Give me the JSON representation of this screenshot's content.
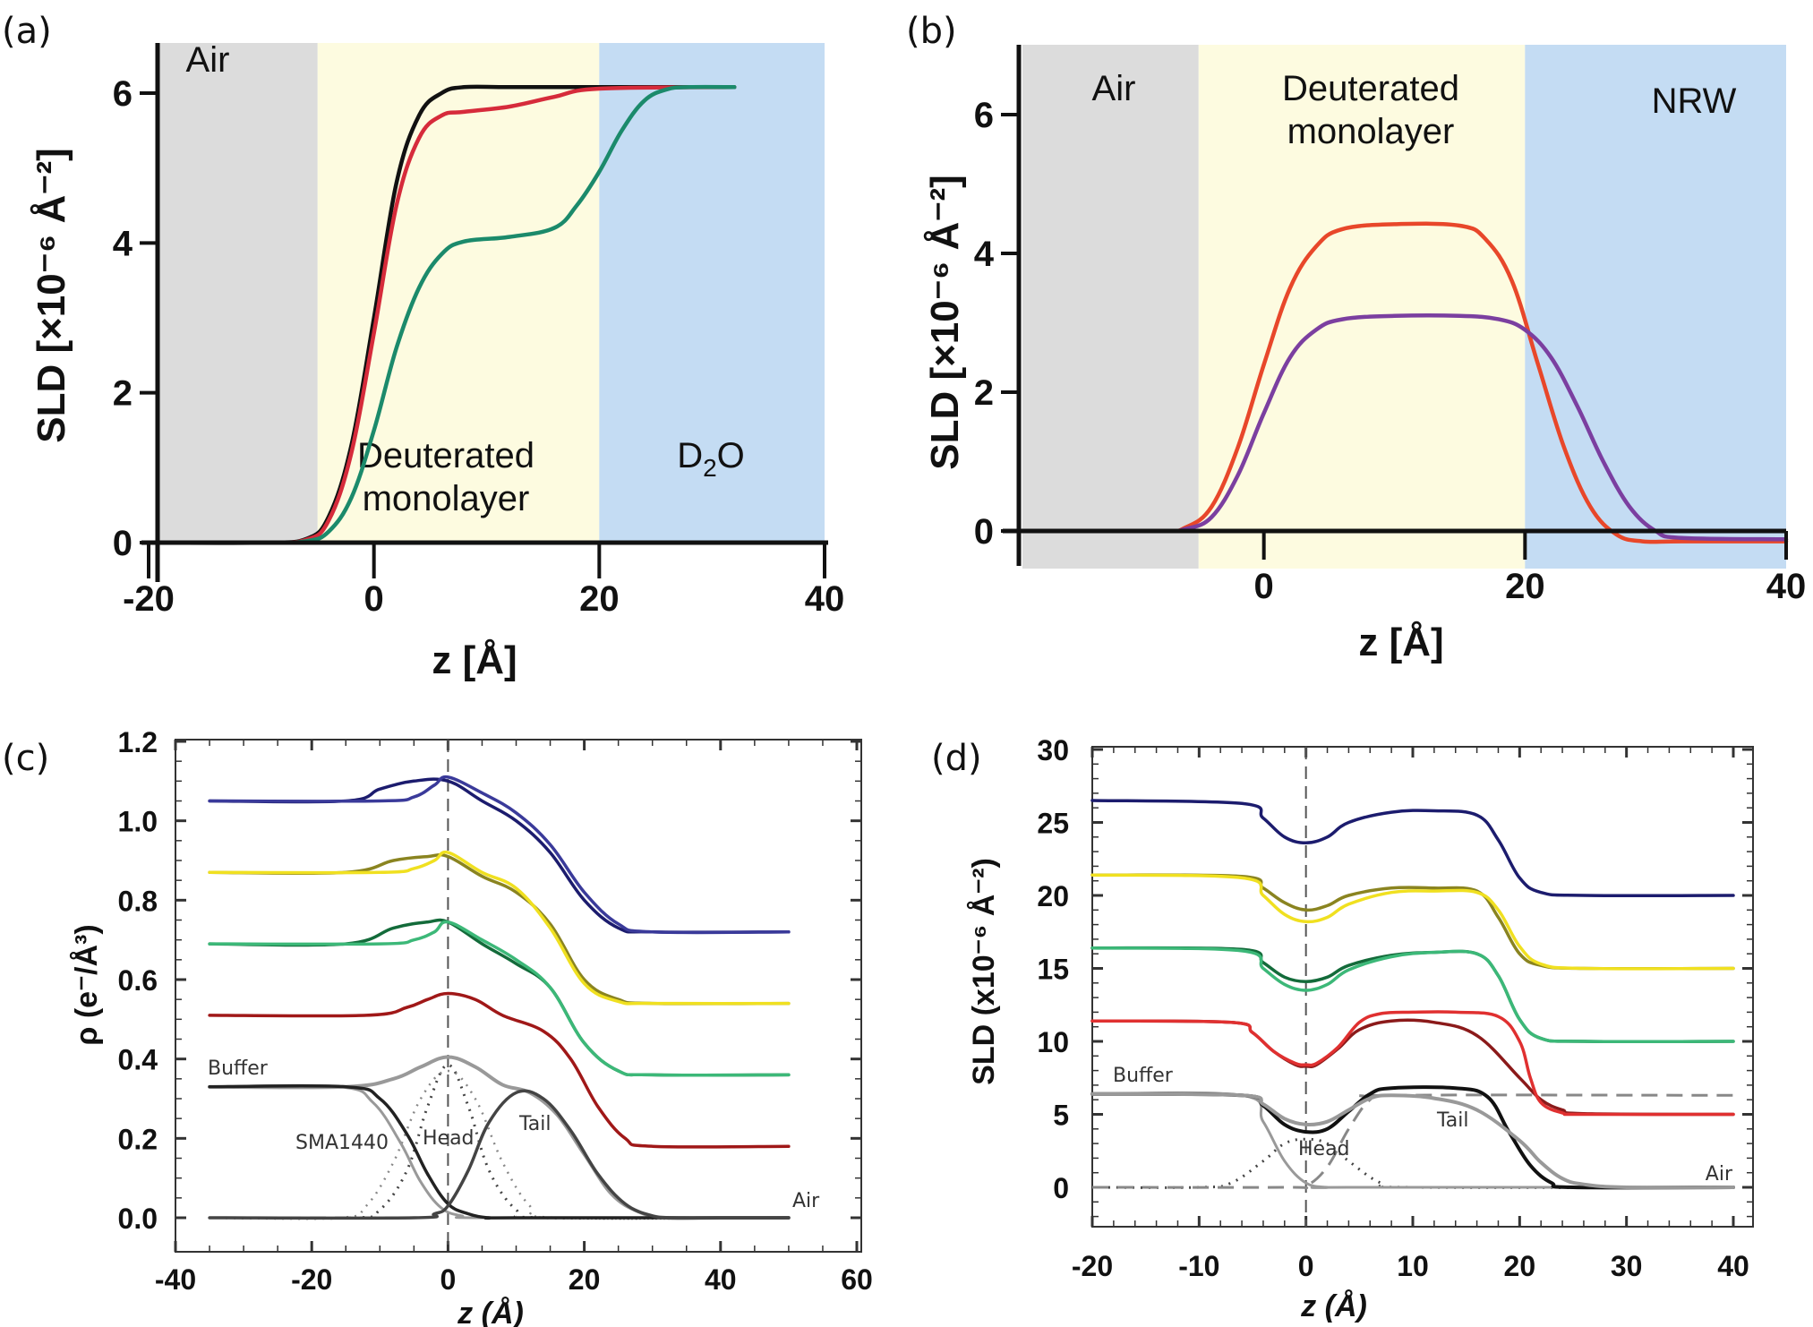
{
  "figure": {
    "panels": [
      "(a)",
      "(b)",
      "(c)",
      "(d)"
    ]
  },
  "chart_data": [
    {
      "id": "a",
      "type": "line",
      "panel_label": "(a)",
      "title": "",
      "xlabel": "z [Å]",
      "ylabel": "SLD [×10⁻⁶ Å⁻²]",
      "xlim": [
        -20,
        40
      ],
      "ylim": [
        0,
        6.6
      ],
      "xticks": [
        -20,
        0,
        20,
        40
      ],
      "yticks": [
        0,
        2,
        4,
        6
      ],
      "grid": false,
      "regions": [
        {
          "label": "Air",
          "x": [
            -20,
            -5
          ],
          "color": "#dcdcdc"
        },
        {
          "label": "Deuterated monolayer",
          "x": [
            -5,
            20
          ],
          "color": "#fdfbe0"
        },
        {
          "label": "D2O",
          "x": [
            20,
            40
          ],
          "color": "#c4dcf3"
        }
      ],
      "series": [
        {
          "name": "black",
          "color": "#111111",
          "x": [
            -20,
            -10,
            -6,
            -4,
            -2,
            0,
            2,
            4,
            6,
            8,
            12,
            20,
            32
          ],
          "y": [
            0,
            0,
            0.05,
            0.35,
            1.3,
            3.0,
            4.8,
            5.7,
            6.0,
            6.08,
            6.08,
            6.08,
            6.08
          ]
        },
        {
          "name": "red",
          "color": "#d62b3b",
          "x": [
            -20,
            -10,
            -6,
            -4,
            -2,
            0,
            2,
            4,
            6,
            8,
            12,
            16,
            20,
            32
          ],
          "y": [
            0,
            0,
            0.04,
            0.3,
            1.2,
            2.8,
            4.5,
            5.4,
            5.7,
            5.75,
            5.82,
            5.95,
            6.06,
            6.08
          ]
        },
        {
          "name": "green",
          "color": "#1b8a6b",
          "x": [
            -20,
            -10,
            -6,
            -4,
            -2,
            0,
            2,
            4,
            6,
            8,
            12,
            16,
            18,
            20,
            22,
            24,
            26,
            28,
            32
          ],
          "y": [
            0,
            0,
            0.02,
            0.15,
            0.6,
            1.5,
            2.6,
            3.4,
            3.85,
            4.02,
            4.08,
            4.2,
            4.5,
            4.95,
            5.5,
            5.9,
            6.05,
            6.08,
            6.08
          ]
        }
      ]
    },
    {
      "id": "b",
      "type": "line",
      "panel_label": "(b)",
      "title": "",
      "xlabel": "z [Å]",
      "ylabel": "SLD [×10⁻⁶ Å⁻²]",
      "xlim": [
        -20,
        40
      ],
      "ylim": [
        -1.1,
        6.9
      ],
      "xticks": [
        0,
        20,
        40
      ],
      "yticks": [
        0,
        2,
        4,
        6
      ],
      "grid": false,
      "regions": [
        {
          "label": "Air",
          "x": [
            -20,
            -5
          ],
          "color": "#dcdcdc"
        },
        {
          "label": "Deuterated monolayer",
          "x": [
            -5,
            20
          ],
          "color": "#fdfbe0"
        },
        {
          "label": "NRW",
          "x": [
            20,
            40
          ],
          "color": "#c4dcf3"
        }
      ],
      "series": [
        {
          "name": "red",
          "color": "#e8472a",
          "x": [
            -17,
            -8,
            -6,
            -4,
            -2,
            0,
            2,
            4,
            6,
            10,
            15,
            17,
            19,
            21,
            23,
            25,
            27,
            29,
            32,
            40
          ],
          "y": [
            0,
            0,
            0.05,
            0.35,
            1.2,
            2.4,
            3.5,
            4.1,
            4.35,
            4.42,
            4.4,
            4.2,
            3.6,
            2.4,
            1.2,
            0.35,
            -0.05,
            -0.15,
            -0.15,
            -0.15
          ]
        },
        {
          "name": "purple",
          "color": "#7b3fa0",
          "x": [
            -17,
            -8,
            -6,
            -4,
            -2,
            0,
            2,
            4,
            6,
            10,
            15,
            18,
            20,
            22,
            24,
            26,
            28,
            30,
            32,
            40
          ],
          "y": [
            0,
            0,
            0.03,
            0.2,
            0.8,
            1.7,
            2.5,
            2.9,
            3.05,
            3.1,
            3.1,
            3.05,
            2.9,
            2.5,
            1.8,
            1.0,
            0.35,
            0.0,
            -0.1,
            -0.12
          ]
        }
      ]
    },
    {
      "id": "c",
      "type": "line",
      "panel_label": "(c)",
      "title": "",
      "xlabel": "z (Å)",
      "ylabel": "ρ (e⁻/Å³)",
      "xlim": [
        -40,
        60
      ],
      "ylim": [
        -0.05,
        1.2
      ],
      "xticks": [
        -40,
        -20,
        0,
        20,
        40,
        60
      ],
      "yticks": [
        0.0,
        0.2,
        0.4,
        0.6,
        0.8,
        1.0,
        1.2
      ],
      "ytick_labels": [
        "0.0",
        "0.2",
        "0.4",
        "0.6",
        "0.8",
        "1.0",
        "1.2"
      ],
      "grid": false,
      "annotations": [
        "Buffer",
        "SMA1440",
        "Head",
        "Tail",
        "Air"
      ],
      "series": [
        {
          "name": "navy-1",
          "color": "#1c1c6e",
          "x": [
            -35,
            -15,
            -10,
            -5,
            0,
            5,
            10,
            15,
            20,
            25,
            30,
            50
          ],
          "y": [
            1.05,
            1.05,
            1.08,
            1.1,
            1.1,
            1.05,
            1.0,
            0.92,
            0.8,
            0.73,
            0.72,
            0.72
          ]
        },
        {
          "name": "navy-2",
          "color": "#3a3a9a",
          "x": [
            -35,
            -10,
            -5,
            -2,
            0,
            5,
            10,
            15,
            20,
            25,
            30,
            50
          ],
          "y": [
            1.05,
            1.05,
            1.06,
            1.09,
            1.11,
            1.07,
            1.02,
            0.94,
            0.82,
            0.74,
            0.72,
            0.72
          ]
        },
        {
          "name": "olive-1",
          "color": "#8a8420",
          "x": [
            -35,
            -15,
            -8,
            -3,
            0,
            5,
            10,
            15,
            20,
            25,
            30,
            50
          ],
          "y": [
            0.87,
            0.87,
            0.9,
            0.91,
            0.91,
            0.86,
            0.82,
            0.74,
            0.6,
            0.55,
            0.54,
            0.54
          ]
        },
        {
          "name": "yellow-1",
          "color": "#f0e020",
          "x": [
            -35,
            -10,
            -5,
            -2,
            0,
            5,
            10,
            15,
            20,
            25,
            30,
            50
          ],
          "y": [
            0.87,
            0.87,
            0.88,
            0.9,
            0.92,
            0.87,
            0.83,
            0.73,
            0.59,
            0.545,
            0.54,
            0.54
          ]
        },
        {
          "name": "green-1",
          "color": "#136b3a",
          "x": [
            -35,
            -15,
            -8,
            -3,
            0,
            5,
            10,
            15,
            20,
            25,
            30,
            50
          ],
          "y": [
            0.69,
            0.69,
            0.73,
            0.745,
            0.745,
            0.69,
            0.64,
            0.58,
            0.44,
            0.37,
            0.36,
            0.36
          ]
        },
        {
          "name": "green-2",
          "color": "#3cb878",
          "x": [
            -35,
            -10,
            -5,
            -2,
            0,
            5,
            10,
            15,
            20,
            25,
            30,
            50
          ],
          "y": [
            0.69,
            0.69,
            0.7,
            0.72,
            0.745,
            0.7,
            0.65,
            0.58,
            0.44,
            0.37,
            0.36,
            0.36
          ]
        },
        {
          "name": "red-1",
          "color": "#a01818",
          "x": [
            -35,
            -12,
            -6,
            -3,
            0,
            4,
            8,
            14,
            18,
            22,
            26,
            30,
            50
          ],
          "y": [
            0.51,
            0.51,
            0.53,
            0.55,
            0.565,
            0.55,
            0.51,
            0.47,
            0.4,
            0.28,
            0.2,
            0.18,
            0.18
          ]
        },
        {
          "name": "buffer-total",
          "color": "#999999",
          "x": [
            -35,
            -15,
            -8,
            -4,
            0,
            4,
            8,
            12,
            16,
            20,
            24,
            28,
            32,
            40,
            50
          ],
          "y": [
            0.33,
            0.33,
            0.35,
            0.38,
            0.405,
            0.38,
            0.335,
            0.315,
            0.26,
            0.16,
            0.06,
            0.015,
            0.0,
            0.0,
            0.0
          ]
        },
        {
          "name": "sma1440",
          "color": "#222222",
          "x": [
            -35,
            -15,
            -10,
            -6,
            -3,
            0,
            3,
            6,
            10,
            50
          ],
          "y": [
            0.33,
            0.33,
            0.3,
            0.21,
            0.11,
            0.035,
            0.01,
            0.0,
            0.0,
            0.0
          ]
        },
        {
          "name": "tail",
          "color": "#444444",
          "x": [
            -35,
            -5,
            -2,
            0,
            3,
            6,
            10,
            14,
            18,
            22,
            26,
            30,
            34,
            50
          ],
          "y": [
            0.0,
            0.0,
            0.01,
            0.03,
            0.12,
            0.24,
            0.315,
            0.3,
            0.22,
            0.11,
            0.035,
            0.005,
            0.0,
            0.0
          ]
        }
      ]
    },
    {
      "id": "d",
      "type": "line",
      "panel_label": "(d)",
      "title": "",
      "xlabel": "z (Å)",
      "ylabel": "SLD (x10⁻⁶ Å⁻²)",
      "xlim": [
        -22,
        42
      ],
      "ylim": [
        -3,
        30
      ],
      "xticks": [
        -20,
        -10,
        0,
        10,
        20,
        30,
        40
      ],
      "yticks": [
        0,
        5,
        10,
        15,
        20,
        25,
        30
      ],
      "grid": false,
      "annotations": [
        "Buffer",
        "Head",
        "Tail",
        "Air"
      ],
      "series": [
        {
          "name": "navy-1",
          "color": "#1c1c6e",
          "x": [
            -20,
            -6,
            -4,
            -2,
            0,
            2,
            4,
            8,
            12,
            16,
            18,
            20,
            22,
            26,
            40
          ],
          "y": [
            26.5,
            26.3,
            25.3,
            24.0,
            23.6,
            24.0,
            25.0,
            25.7,
            25.8,
            25.5,
            23.8,
            21.2,
            20.2,
            20.0,
            20.0
          ]
        },
        {
          "name": "olive-1",
          "color": "#8a8420",
          "x": [
            -20,
            -6,
            -4,
            -2,
            0,
            2,
            4,
            8,
            12,
            16,
            18,
            20,
            22,
            26,
            40
          ],
          "y": [
            21.4,
            21.3,
            20.5,
            19.5,
            19.0,
            19.3,
            20.0,
            20.5,
            20.5,
            20.3,
            18.5,
            16.0,
            15.2,
            15.0,
            15.0
          ]
        },
        {
          "name": "yellow-1",
          "color": "#f0e020",
          "x": [
            -20,
            -6,
            -4,
            -2,
            0,
            2,
            4,
            8,
            12,
            16,
            18,
            20,
            22,
            26,
            40
          ],
          "y": [
            21.4,
            21.2,
            20.0,
            18.7,
            18.2,
            18.5,
            19.4,
            20.2,
            20.3,
            20.2,
            19.0,
            16.5,
            15.3,
            15.0,
            15.0
          ]
        },
        {
          "name": "green-1",
          "color": "#136b3a",
          "x": [
            -20,
            -6,
            -4,
            -2,
            0,
            2,
            4,
            8,
            12,
            16,
            18,
            20,
            22,
            26,
            40
          ],
          "y": [
            16.4,
            16.3,
            15.4,
            14.4,
            14.1,
            14.4,
            15.2,
            15.9,
            16.1,
            16.0,
            14.5,
            11.5,
            10.2,
            10.0,
            10.0
          ]
        },
        {
          "name": "green-2",
          "color": "#3cb878",
          "x": [
            -20,
            -6,
            -4,
            -2,
            0,
            2,
            4,
            8,
            12,
            16,
            18,
            20,
            22,
            26,
            40
          ],
          "y": [
            16.4,
            16.2,
            15.0,
            13.9,
            13.5,
            13.9,
            14.9,
            15.8,
            16.1,
            16.0,
            14.5,
            11.5,
            10.2,
            10.0,
            10.0
          ]
        },
        {
          "name": "red-1",
          "color": "#8b1a1a",
          "x": [
            -20,
            -7,
            -5,
            -3,
            -1,
            0,
            1,
            3,
            5,
            8,
            12,
            16,
            20,
            22,
            24,
            26,
            40
          ],
          "y": [
            11.4,
            11.3,
            10.6,
            9.3,
            8.4,
            8.3,
            8.4,
            9.5,
            10.8,
            11.4,
            11.3,
            10.4,
            7.5,
            6.0,
            5.3,
            5.05,
            5.0
          ]
        },
        {
          "name": "red-2",
          "color": "#e03030",
          "x": [
            -20,
            -7,
            -5,
            -3,
            -1,
            0,
            1,
            3,
            5,
            7,
            10,
            14,
            18,
            20,
            21,
            22,
            24,
            26,
            40
          ],
          "y": [
            11.4,
            11.3,
            10.6,
            9.3,
            8.5,
            8.4,
            8.5,
            9.6,
            11.3,
            11.9,
            12.0,
            12.0,
            11.7,
            10.0,
            7.5,
            5.8,
            5.1,
            5.0,
            5.0
          ]
        },
        {
          "name": "buffer-black",
          "color": "#111111",
          "x": [
            -20,
            -6,
            -4,
            -2,
            0,
            2,
            4,
            6,
            8,
            14,
            17,
            19,
            21,
            23,
            25,
            40
          ],
          "y": [
            6.4,
            6.3,
            5.6,
            4.3,
            3.8,
            4.0,
            5.2,
            6.4,
            6.8,
            6.8,
            6.2,
            3.8,
            1.5,
            0.3,
            0.0,
            0.0
          ]
        },
        {
          "name": "buffer-grey",
          "color": "#999999",
          "x": [
            -20,
            -6,
            -4,
            -2,
            0,
            2,
            4,
            6,
            8,
            12,
            16,
            20,
            22,
            24,
            26,
            30,
            40
          ],
          "y": [
            6.4,
            6.3,
            5.7,
            4.7,
            4.3,
            4.5,
            5.3,
            6.1,
            6.3,
            6.1,
            5.3,
            3.2,
            1.7,
            0.6,
            0.2,
            0.0,
            0.0
          ]
        }
      ]
    }
  ]
}
